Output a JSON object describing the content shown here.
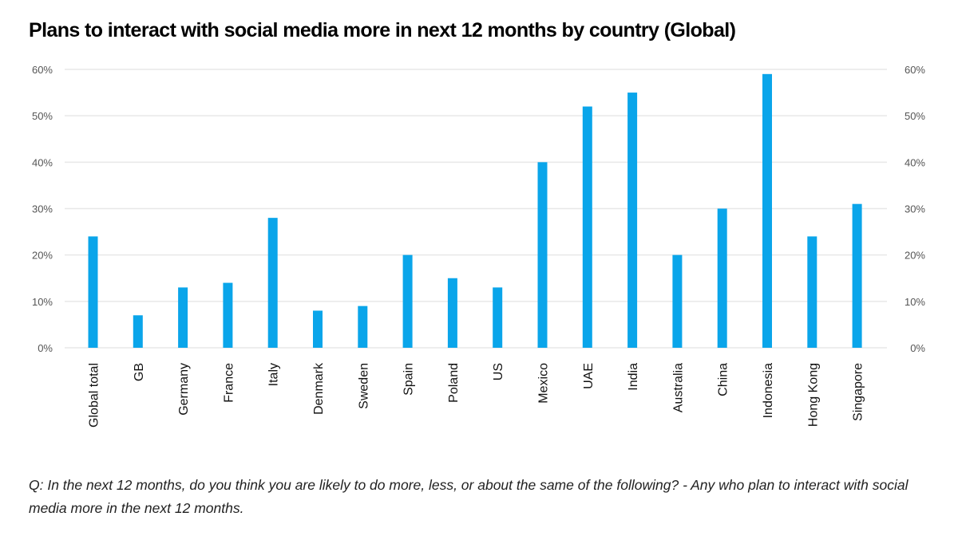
{
  "title": "Plans to interact with social media more in next 12 months by country (Global)",
  "footnote": "Q: In the next 12 months, do you think you are likely to do more, less, or about the same of the following? - Any who plan to interact with social media more in the next 12 months.",
  "colors": {
    "bar": "#0aa5ea",
    "grid": "#e8e8e8",
    "tick": "#555555"
  },
  "chart_data": {
    "type": "bar",
    "title": "Plans to interact with social media more in next 12 months by country (Global)",
    "xlabel": "",
    "ylabel": "",
    "ylim": [
      0,
      60
    ],
    "yticks": [
      0,
      10,
      20,
      30,
      40,
      50,
      60
    ],
    "ytick_labels": [
      "0%",
      "10%",
      "20%",
      "30%",
      "40%",
      "50%",
      "60%"
    ],
    "y_axis_sides": [
      "left",
      "right"
    ],
    "grid": true,
    "categories": [
      "Global total",
      "GB",
      "Germany",
      "France",
      "Italy",
      "Denmark",
      "Sweden",
      "Spain",
      "Poland",
      "US",
      "Mexico",
      "UAE",
      "India",
      "Australia",
      "China",
      "Indonesia",
      "Hong Kong",
      "Singapore"
    ],
    "values": [
      24,
      7,
      13,
      14,
      28,
      8,
      9,
      20,
      15,
      13,
      40,
      52,
      55,
      20,
      30,
      59,
      24,
      31
    ],
    "unit": "%"
  }
}
